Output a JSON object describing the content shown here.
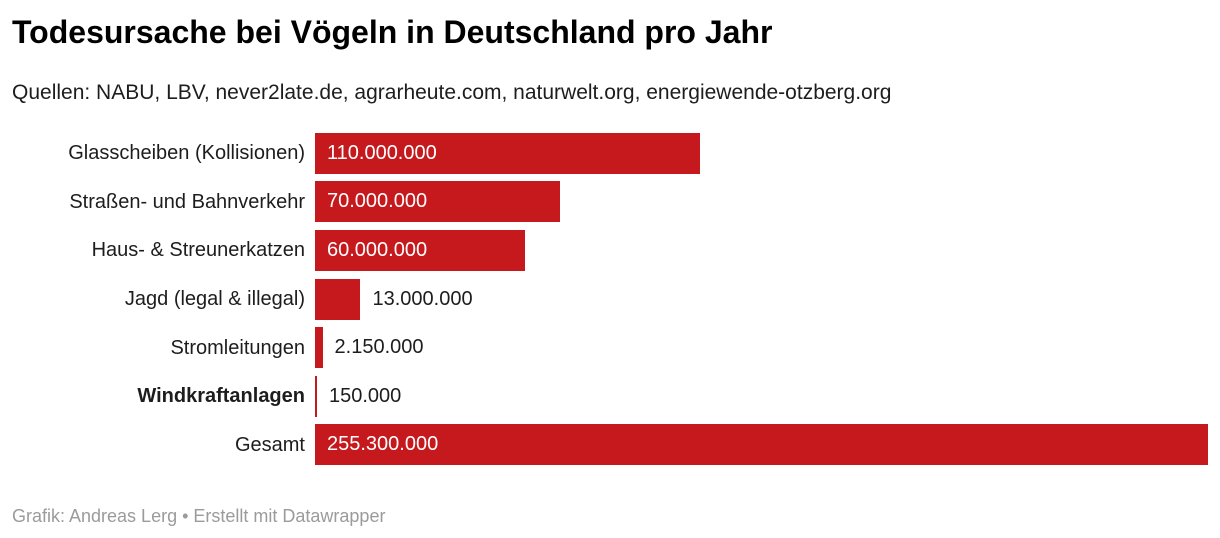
{
  "header": {
    "title": "Todesursache bei Vögeln in Deutschland pro Jahr",
    "sources": "Quellen: NABU, LBV, never2late.de, agrarheute.com, naturwelt.org, energiewende-otzberg.org"
  },
  "footer": {
    "credit": "Grafik: Andreas Lerg • Erstellt mit Datawrapper"
  },
  "colors": {
    "bar": "#c5191d",
    "value_inside": "#ffffff",
    "value_outside": "#1d1d1d",
    "label": "#1d1d1d",
    "title": "#000000",
    "footer": "#9b9b9b",
    "background": "#ffffff"
  },
  "chart_data": {
    "type": "bar",
    "orientation": "horizontal",
    "title": "Todesursache bei Vögeln in Deutschland pro Jahr",
    "subtitle": "Quellen: NABU, LBV, never2late.de, agrarheute.com, naturwelt.org, energiewende-otzberg.org",
    "categories": [
      "Glasscheiben (Kollisionen)",
      "Straßen- und Bahnverkehr",
      "Haus- & Streunerkatzen",
      "Jagd (legal & illegal)",
      "Stromleitungen",
      "Windkraftanlagen",
      "Gesamt"
    ],
    "values": [
      110000000,
      70000000,
      60000000,
      13000000,
      2150000,
      150000,
      255300000
    ],
    "value_labels": [
      "110.000.000",
      "70.000.000",
      "60.000.000",
      "13.000.000",
      "2.150.000",
      "150.000",
      "255.300.000"
    ],
    "emphasized_category": "Windkraftanlagen",
    "xlabel": "",
    "ylabel": "",
    "xlim": [
      0,
      255300000
    ],
    "grid": false,
    "legend": "none",
    "annotation": "Grafik: Andreas Lerg • Erstellt mit Datawrapper"
  }
}
